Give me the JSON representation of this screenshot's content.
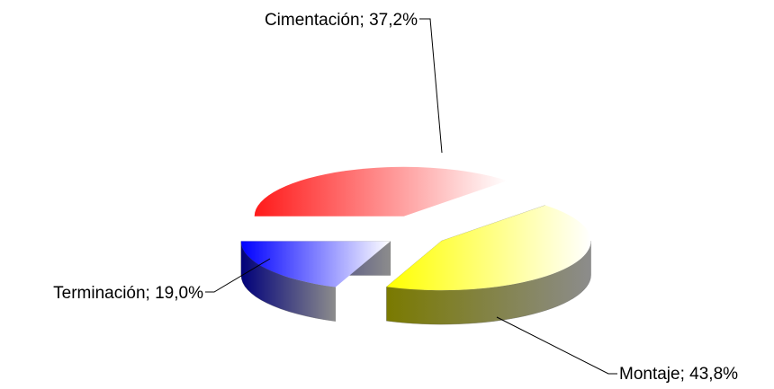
{
  "chart_data": {
    "type": "pie",
    "categories": [
      "Cimentación",
      "Montaje",
      "Terminación"
    ],
    "values": [
      37.2,
      43.8,
      19.0
    ],
    "unit": "%",
    "labels": [
      "Cimentación; 37,2%",
      "Montaje; 43,8%",
      "Terminación; 19,0%"
    ],
    "colors": [
      "#ff0000",
      "#ffff00",
      "#0000ff"
    ],
    "legend": "none",
    "exploded": true,
    "style": "3d"
  }
}
